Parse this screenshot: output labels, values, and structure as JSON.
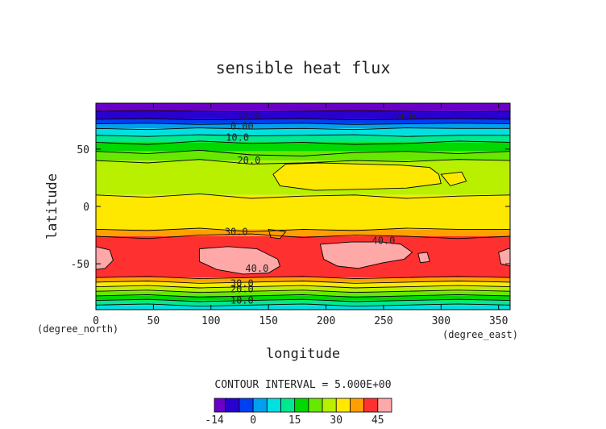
{
  "chart_data": {
    "type": "heatmap",
    "title": "sensible heat flux",
    "xlabel": "longitude",
    "ylabel": "latitude",
    "x_unit": "(degree_east)",
    "y_unit": "(degree_north)",
    "xlim": [
      0,
      360
    ],
    "ylim": [
      -90,
      90
    ],
    "x_ticks": [
      0,
      50,
      100,
      150,
      200,
      250,
      300,
      350
    ],
    "y_ticks": [
      50,
      0,
      -50
    ],
    "contour_interval_text": "CONTOUR INTERVAL = 5.000E+00",
    "contour_labels": [
      {
        "text": "-10.0",
        "lon": 130,
        "lat": 78
      },
      {
        "text": "-10.0",
        "lon": 265,
        "lat": 78
      },
      {
        "text": "0.00",
        "lon": 127,
        "lat": 70
      },
      {
        "text": "10.0",
        "lon": 123,
        "lat": 60
      },
      {
        "text": "20.0",
        "lon": 133,
        "lat": 40
      },
      {
        "text": "30.0",
        "lon": 122,
        "lat": -22
      },
      {
        "text": "40.0",
        "lon": 140,
        "lat": -54
      },
      {
        "text": "40.0",
        "lon": 250,
        "lat": -30
      },
      {
        "text": "30.0",
        "lon": 127,
        "lat": -67
      },
      {
        "text": "20.0",
        "lon": 127,
        "lat": -72
      },
      {
        "text": "10.0",
        "lon": 127,
        "lat": -82
      }
    ],
    "color_levels": [
      {
        "min": -14,
        "max": -10,
        "color": "#6a00c8"
      },
      {
        "min": -10,
        "max": -5,
        "color": "#2800d0"
      },
      {
        "min": -5,
        "max": 0,
        "color": "#0040f0"
      },
      {
        "min": 0,
        "max": 5,
        "color": "#00a0f0"
      },
      {
        "min": 5,
        "max": 10,
        "color": "#00e0e0"
      },
      {
        "min": 10,
        "max": 15,
        "color": "#00e890"
      },
      {
        "min": 15,
        "max": 20,
        "color": "#00d800"
      },
      {
        "min": 20,
        "max": 25,
        "color": "#66e800"
      },
      {
        "min": 25,
        "max": 30,
        "color": "#b8f000"
      },
      {
        "min": 30,
        "max": 35,
        "color": "#ffe800"
      },
      {
        "min": 35,
        "max": 40,
        "color": "#ffa000"
      },
      {
        "min": 40,
        "max": 45,
        "color": "#ff3030"
      },
      {
        "min": 45,
        "max": 50,
        "color": "#ffa8a8"
      }
    ],
    "colorbar_ticks": [
      "-14",
      "0",
      "15",
      "30",
      "45"
    ],
    "latitude_profile": [
      {
        "lat_top": 90,
        "lat_bottom": 83,
        "value": -12
      },
      {
        "lat_top": 83,
        "lat_bottom": 76,
        "value": -7
      },
      {
        "lat_top": 76,
        "lat_bottom": 72,
        "value": -2
      },
      {
        "lat_top": 72,
        "lat_bottom": 68,
        "value": 3
      },
      {
        "lat_top": 68,
        "lat_bottom": 62,
        "value": 7
      },
      {
        "lat_top": 62,
        "lat_bottom": 56,
        "value": 12
      },
      {
        "lat_top": 56,
        "lat_bottom": 48,
        "value": 17
      },
      {
        "lat_top": 48,
        "lat_bottom": 40,
        "value": 22
      },
      {
        "lat_top": 40,
        "lat_bottom": 10,
        "value": 27
      },
      {
        "lat_top": 10,
        "lat_bottom": -20,
        "value": 32
      },
      {
        "lat_top": -20,
        "lat_bottom": -26,
        "value": 37
      },
      {
        "lat_top": -26,
        "lat_bottom": -62,
        "value": 42
      },
      {
        "lat_top": -62,
        "lat_bottom": -66,
        "value": 37
      },
      {
        "lat_top": -66,
        "lat_bottom": -70,
        "value": 32
      },
      {
        "lat_top": -70,
        "lat_bottom": -74,
        "value": 27
      },
      {
        "lat_top": -74,
        "lat_bottom": -78,
        "value": 22
      },
      {
        "lat_top": -78,
        "lat_bottom": -82,
        "value": 17
      },
      {
        "lat_top": -82,
        "lat_bottom": -86,
        "value": 12
      },
      {
        "lat_top": -86,
        "lat_bottom": -90,
        "value": 7
      }
    ],
    "regions": [
      {
        "kind": "patch",
        "value": 32,
        "points": [
          [
            165,
            37
          ],
          [
            195,
            38
          ],
          [
            230,
            37
          ],
          [
            265,
            36
          ],
          [
            290,
            34
          ],
          [
            298,
            28
          ],
          [
            300,
            20
          ],
          [
            270,
            16
          ],
          [
            230,
            15
          ],
          [
            190,
            14
          ],
          [
            160,
            18
          ],
          [
            154,
            28
          ]
        ]
      },
      {
        "kind": "patch",
        "value": 32,
        "points": [
          [
            300,
            28
          ],
          [
            318,
            30
          ],
          [
            322,
            22
          ],
          [
            308,
            18
          ]
        ]
      },
      {
        "kind": "patch",
        "value": 37,
        "points": [
          [
            150,
            -20
          ],
          [
            165,
            -22
          ],
          [
            160,
            -28
          ],
          [
            152,
            -27
          ]
        ]
      },
      {
        "kind": "patch",
        "value": 47,
        "points": [
          [
            90,
            -37
          ],
          [
            115,
            -35
          ],
          [
            140,
            -37
          ],
          [
            158,
            -46
          ],
          [
            160,
            -52
          ],
          [
            150,
            -58
          ],
          [
            128,
            -59
          ],
          [
            105,
            -55
          ],
          [
            90,
            -48
          ]
        ]
      },
      {
        "kind": "patch",
        "value": 47,
        "points": [
          [
            195,
            -33
          ],
          [
            222,
            -31
          ],
          [
            248,
            -31
          ],
          [
            265,
            -33
          ],
          [
            275,
            -40
          ],
          [
            268,
            -46
          ],
          [
            250,
            -49
          ],
          [
            228,
            -54
          ],
          [
            210,
            -52
          ],
          [
            198,
            -46
          ]
        ]
      },
      {
        "kind": "patch",
        "value": 47,
        "points": [
          [
            0,
            -35
          ],
          [
            12,
            -38
          ],
          [
            15,
            -47
          ],
          [
            8,
            -54
          ],
          [
            0,
            -55
          ]
        ]
      },
      {
        "kind": "patch",
        "value": 47,
        "points": [
          [
            350,
            -40
          ],
          [
            358,
            -37
          ],
          [
            360,
            -37
          ],
          [
            360,
            -52
          ],
          [
            352,
            -50
          ]
        ]
      },
      {
        "kind": "patch",
        "value": 47,
        "points": [
          [
            280,
            -41
          ],
          [
            288,
            -40
          ],
          [
            290,
            -48
          ],
          [
            282,
            -49
          ]
        ]
      }
    ],
    "contours": [
      {
        "value": -10,
        "lats": [
          83,
          83.5,
          83,
          82.5,
          83,
          83.5,
          83,
          82.5,
          83
        ]
      },
      {
        "value": -5,
        "lats": [
          76,
          76.5,
          75.5,
          76,
          76.5,
          75.5,
          76,
          76.5,
          76
        ]
      },
      {
        "value": 0,
        "lats": [
          72,
          72.5,
          71.5,
          72,
          72.5,
          71.5,
          72,
          72.5,
          72
        ]
      },
      {
        "value": 5,
        "lats": [
          68,
          67,
          68.5,
          67.5,
          68,
          67,
          68.5,
          68,
          68
        ]
      },
      {
        "value": 10,
        "lats": [
          62,
          61,
          62.5,
          61.5,
          62,
          62.5,
          61,
          62,
          62
        ]
      },
      {
        "value": 15,
        "lats": [
          56,
          54,
          57,
          55,
          56,
          54,
          55,
          57,
          56
        ]
      },
      {
        "value": 20,
        "lats": [
          48,
          46,
          49,
          45,
          44,
          47,
          48,
          46,
          48
        ]
      },
      {
        "value": 25,
        "lats": [
          40,
          38,
          41,
          37,
          38,
          40,
          39,
          41,
          40
        ]
      },
      {
        "value": 30,
        "lats": [
          10,
          8,
          11,
          7,
          9,
          10,
          7,
          9,
          10
        ]
      },
      {
        "value": 35,
        "lats": [
          -20,
          -21,
          -19,
          -22,
          -20,
          -21,
          -19,
          -20,
          -20
        ]
      },
      {
        "value": 40,
        "lats": [
          -26,
          -28,
          -25,
          -24,
          -27,
          -25,
          -26,
          -28,
          -26
        ]
      },
      {
        "value": 40,
        "lats": [
          -62,
          -61,
          -63,
          -62,
          -61,
          -63,
          -62,
          -61,
          -62
        ]
      },
      {
        "value": 35,
        "lats": [
          -66,
          -65,
          -67,
          -66,
          -65,
          -67,
          -66,
          -65,
          -66
        ]
      },
      {
        "value": 30,
        "lats": [
          -70,
          -69,
          -71,
          -70,
          -69,
          -71,
          -70,
          -69,
          -70
        ]
      },
      {
        "value": 25,
        "lats": [
          -74,
          -73,
          -75,
          -74,
          -73,
          -75,
          -74,
          -73,
          -74
        ]
      },
      {
        "value": 20,
        "lats": [
          -78,
          -77,
          -79,
          -78,
          -77,
          -79,
          -78,
          -77,
          -78
        ]
      },
      {
        "value": 15,
        "lats": [
          -82,
          -81,
          -83,
          -82,
          -81,
          -83,
          -82,
          -81,
          -82
        ]
      },
      {
        "value": 10,
        "lats": [
          -86,
          -85,
          -87,
          -86,
          -85,
          -87,
          -86,
          -85,
          -86
        ]
      }
    ]
  }
}
